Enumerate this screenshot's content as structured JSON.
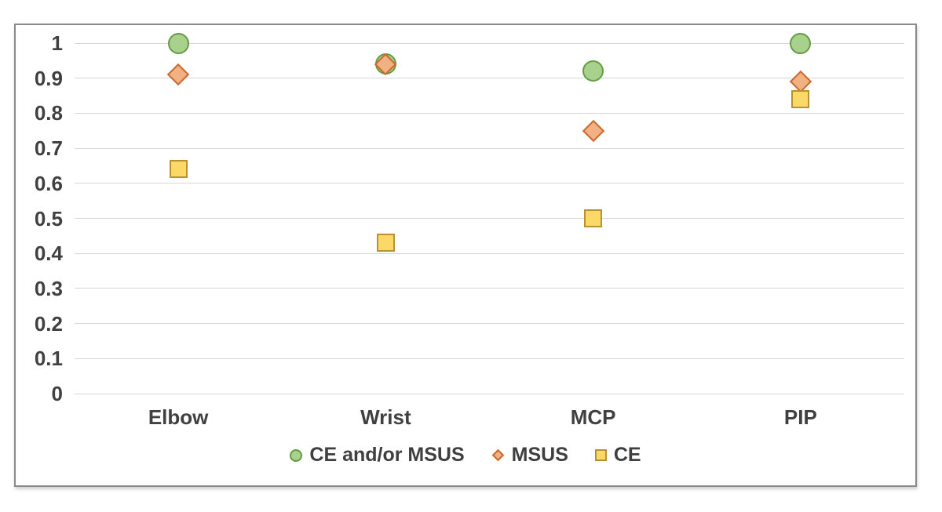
{
  "chart_data": {
    "type": "scatter",
    "categories": [
      "Elbow",
      "Wrist",
      "MCP",
      "PIP"
    ],
    "series": [
      {
        "name": "CE and/or MSUS",
        "marker": "circle",
        "fill": "#a9d18e",
        "stroke": "#669b41",
        "values": [
          1.0,
          0.94,
          0.92,
          1.0
        ]
      },
      {
        "name": "MSUS",
        "marker": "diamond",
        "fill": "#f2b183",
        "stroke": "#c8682f",
        "values": [
          0.91,
          0.94,
          0.75,
          0.89
        ]
      },
      {
        "name": "CE",
        "marker": "square",
        "fill": "#fbd966",
        "stroke": "#b99130",
        "values": [
          0.64,
          0.43,
          0.5,
          0.84
        ]
      }
    ],
    "title": "",
    "xlabel": "",
    "ylabel": "",
    "ylim": [
      0,
      1
    ],
    "yticks": [
      0,
      0.1,
      0.2,
      0.3,
      0.4,
      0.5,
      0.6,
      0.7,
      0.8,
      0.9,
      1
    ],
    "ytick_labels": [
      "0",
      "0.1",
      "0.2",
      "0.3",
      "0.4",
      "0.5",
      "0.6",
      "0.7",
      "0.8",
      "0.9",
      "1"
    ],
    "grid": true,
    "gridline_color": "#d6d6d6",
    "axis_text_color": "#404040",
    "frame_border_color": "#8a8a8a",
    "legend_position": "bottom"
  }
}
